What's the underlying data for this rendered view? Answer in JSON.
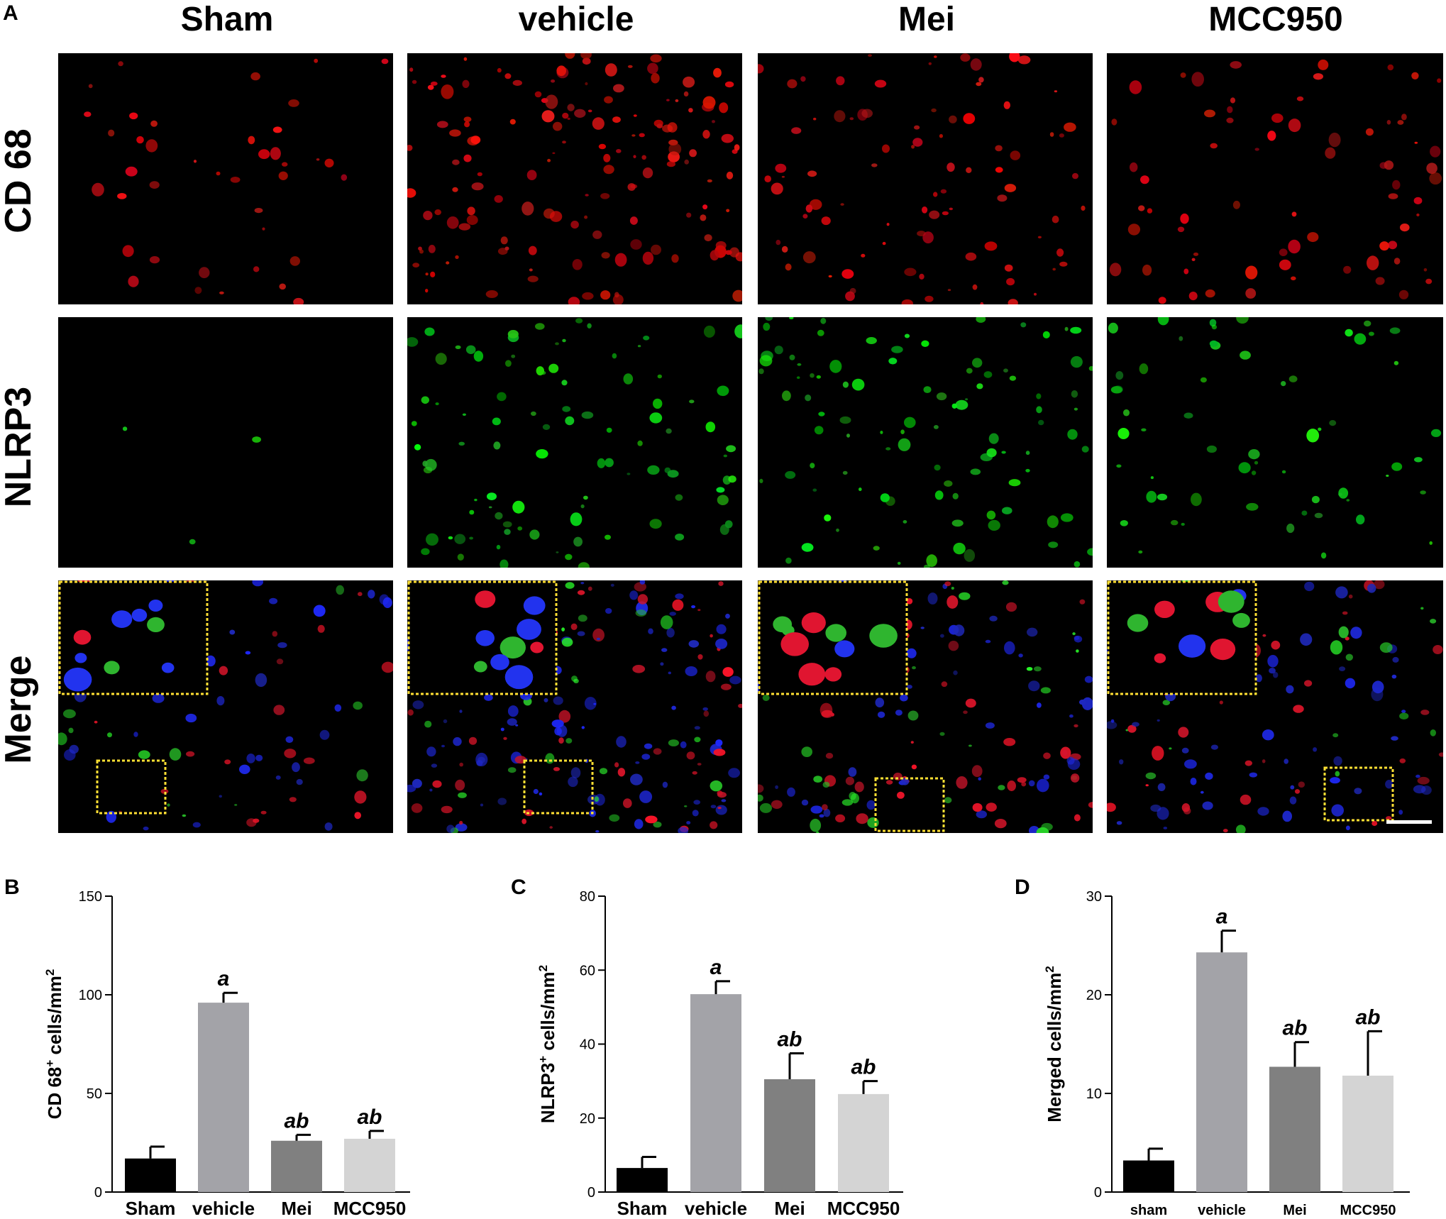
{
  "figure": {
    "panel_a_letter": "A",
    "columns": [
      "Sham",
      "vehicle",
      "Mei",
      "MCC950"
    ],
    "rows": [
      "CD 68",
      "NLRP3",
      "Merge"
    ]
  },
  "chart_data": [
    {
      "panel": "B",
      "type": "bar",
      "categories": [
        "Sham",
        "vehicle",
        "Mei",
        "MCC950"
      ],
      "values": [
        17,
        96,
        26,
        27
      ],
      "errors": [
        6,
        5,
        3,
        4
      ],
      "annotations": [
        "",
        "a",
        "ab",
        "ab"
      ],
      "bar_colors": [
        "#000000",
        "#a3a3a8",
        "#808080",
        "#d4d4d4"
      ],
      "ylabel_main": "CD 68",
      "ylabel_sup": "+",
      "ylabel_rest": " cells/mm",
      "ylabel_sup2": "2",
      "ylim": [
        0,
        150
      ],
      "yticks": [
        0,
        50,
        100,
        150
      ]
    },
    {
      "panel": "C",
      "type": "bar",
      "categories": [
        "Sham",
        "vehicle",
        "Mei",
        "MCC950"
      ],
      "values": [
        6.5,
        53.5,
        30.5,
        26.5
      ],
      "errors": [
        3,
        3.5,
        7,
        3.5
      ],
      "annotations": [
        "",
        "a",
        "ab",
        "ab"
      ],
      "bar_colors": [
        "#000000",
        "#a3a3a8",
        "#808080",
        "#d4d4d4"
      ],
      "ylabel_main": "NLRP3",
      "ylabel_sup": "+",
      "ylabel_rest": " cells/mm",
      "ylabel_sup2": "2",
      "ylim": [
        0,
        80
      ],
      "yticks": [
        0,
        20,
        40,
        60,
        80
      ]
    },
    {
      "panel": "D",
      "type": "bar",
      "categories": [
        "sham",
        "vehicle",
        "Mei",
        "MCC950"
      ],
      "values": [
        3.2,
        24.3,
        12.7,
        11.8
      ],
      "errors": [
        1.2,
        2.2,
        2.5,
        4.5
      ],
      "annotations": [
        "",
        "a",
        "ab",
        "ab"
      ],
      "bar_colors": [
        "#000000",
        "#a3a3a8",
        "#808080",
        "#d4d4d4"
      ],
      "ylabel_main": "Merged cells/mm",
      "ylabel_sup": "",
      "ylabel_rest": "",
      "ylabel_sup2": "2",
      "ylim": [
        0,
        30
      ],
      "yticks": [
        0,
        10,
        20,
        30
      ]
    }
  ]
}
